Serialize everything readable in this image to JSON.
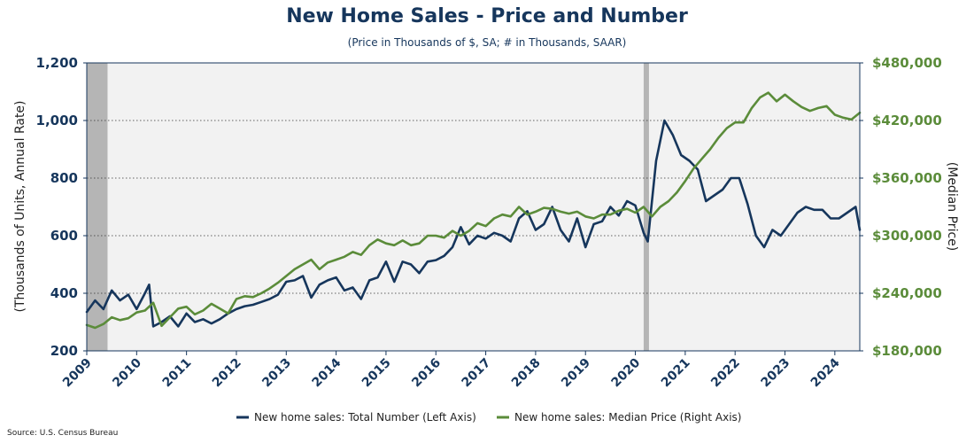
{
  "chart_data": {
    "type": "line",
    "title": "New Home Sales - Price and Number",
    "subtitle": "(Price in Thousands of $, SA; # in Thousands, SAAR)",
    "ylabel_left": "(Thousands of Units, Annual Rate)",
    "ylabel_right": "(Median Price)",
    "source": "Source: U.S. Census Bureau",
    "x_start": "2009-01",
    "x_end": "2024-07",
    "x_tick_labels": [
      "2009",
      "2010",
      "2011",
      "2012",
      "2013",
      "2014",
      "2015",
      "2016",
      "2017",
      "2018",
      "2019",
      "2020",
      "2021",
      "2022",
      "2023",
      "2024"
    ],
    "ylim_left": [
      200,
      1200
    ],
    "yticks_left": [
      "200",
      "400",
      "600",
      "800",
      "1,000",
      "1,200"
    ],
    "ylim_right": [
      180000,
      480000
    ],
    "yticks_right": [
      "$180,000",
      "$240,000",
      "$300,000",
      "$360,000",
      "$420,000",
      "$480,000"
    ],
    "recessions": [
      {
        "start": "2009-01",
        "end": "2009-06"
      },
      {
        "start": "2020-03",
        "end": "2020-04"
      }
    ],
    "grid": "horizontal dotted",
    "legend_position": "bottom",
    "series": [
      {
        "name": "New home sales: Total Number (Left Axis)",
        "axis": "left",
        "color": "#16365c",
        "x": [
          "2009-01",
          "2009-03",
          "2009-05",
          "2009-07",
          "2009-09",
          "2009-11",
          "2010-01",
          "2010-03",
          "2010-04",
          "2010-05",
          "2010-07",
          "2010-09",
          "2010-11",
          "2011-01",
          "2011-03",
          "2011-05",
          "2011-07",
          "2011-09",
          "2011-11",
          "2012-01",
          "2012-03",
          "2012-05",
          "2012-07",
          "2012-09",
          "2012-11",
          "2013-01",
          "2013-03",
          "2013-05",
          "2013-07",
          "2013-09",
          "2013-11",
          "2014-01",
          "2014-03",
          "2014-05",
          "2014-07",
          "2014-09",
          "2014-11",
          "2015-01",
          "2015-03",
          "2015-05",
          "2015-07",
          "2015-09",
          "2015-11",
          "2016-01",
          "2016-03",
          "2016-05",
          "2016-07",
          "2016-09",
          "2016-11",
          "2017-01",
          "2017-03",
          "2017-05",
          "2017-07",
          "2017-09",
          "2017-11",
          "2018-01",
          "2018-03",
          "2018-05",
          "2018-07",
          "2018-09",
          "2018-11",
          "2019-01",
          "2019-03",
          "2019-05",
          "2019-07",
          "2019-09",
          "2019-11",
          "2020-01",
          "2020-03",
          "2020-04",
          "2020-06",
          "2020-08",
          "2020-10",
          "2020-12",
          "2021-02",
          "2021-04",
          "2021-06",
          "2021-08",
          "2021-10",
          "2021-12",
          "2022-02",
          "2022-04",
          "2022-06",
          "2022-08",
          "2022-10",
          "2022-12",
          "2023-02",
          "2023-04",
          "2023-06",
          "2023-08",
          "2023-10",
          "2023-12",
          "2024-02",
          "2024-04",
          "2024-06",
          "2024-07"
        ],
        "values": [
          335,
          375,
          345,
          410,
          375,
          395,
          345,
          400,
          430,
          285,
          300,
          320,
          285,
          330,
          300,
          310,
          295,
          310,
          330,
          345,
          355,
          360,
          370,
          380,
          395,
          440,
          445,
          460,
          385,
          430,
          445,
          455,
          410,
          420,
          380,
          445,
          455,
          510,
          440,
          510,
          500,
          470,
          510,
          515,
          530,
          560,
          630,
          570,
          600,
          590,
          610,
          600,
          580,
          660,
          685,
          620,
          640,
          700,
          620,
          580,
          660,
          560,
          640,
          650,
          700,
          670,
          720,
          705,
          610,
          580,
          860,
          1000,
          950,
          880,
          860,
          830,
          720,
          740,
          760,
          800,
          800,
          710,
          600,
          560,
          620,
          600,
          640,
          680,
          700,
          690,
          690,
          660,
          660,
          680,
          700,
          620
        ]
      },
      {
        "name": "New home sales: Median Price (Right Axis)",
        "axis": "right",
        "color": "#5b8c3a",
        "x": [
          "2009-01",
          "2009-03",
          "2009-05",
          "2009-07",
          "2009-09",
          "2009-11",
          "2010-01",
          "2010-03",
          "2010-05",
          "2010-07",
          "2010-09",
          "2010-11",
          "2011-01",
          "2011-03",
          "2011-05",
          "2011-07",
          "2011-09",
          "2011-11",
          "2012-01",
          "2012-03",
          "2012-05",
          "2012-07",
          "2012-09",
          "2012-11",
          "2013-01",
          "2013-03",
          "2013-05",
          "2013-07",
          "2013-09",
          "2013-11",
          "2014-01",
          "2014-03",
          "2014-05",
          "2014-07",
          "2014-09",
          "2014-11",
          "2015-01",
          "2015-03",
          "2015-05",
          "2015-07",
          "2015-09",
          "2015-11",
          "2016-01",
          "2016-03",
          "2016-05",
          "2016-07",
          "2016-09",
          "2016-11",
          "2017-01",
          "2017-03",
          "2017-05",
          "2017-07",
          "2017-09",
          "2017-11",
          "2018-01",
          "2018-03",
          "2018-05",
          "2018-07",
          "2018-09",
          "2018-11",
          "2019-01",
          "2019-03",
          "2019-05",
          "2019-07",
          "2019-09",
          "2019-11",
          "2020-01",
          "2020-03",
          "2020-05",
          "2020-07",
          "2020-09",
          "2020-11",
          "2021-01",
          "2021-03",
          "2021-05",
          "2021-07",
          "2021-09",
          "2021-11",
          "2022-01",
          "2022-03",
          "2022-05",
          "2022-07",
          "2022-09",
          "2022-11",
          "2023-01",
          "2023-03",
          "2023-05",
          "2023-07",
          "2023-09",
          "2023-11",
          "2024-01",
          "2024-03",
          "2024-05",
          "2024-07"
        ],
        "values": [
          207000,
          204000,
          208000,
          215000,
          212000,
          214000,
          220000,
          222000,
          230000,
          206000,
          215000,
          224000,
          226000,
          218000,
          222000,
          229000,
          224000,
          219000,
          234000,
          237000,
          236000,
          240000,
          245000,
          251000,
          258000,
          265000,
          270000,
          275000,
          265000,
          272000,
          275000,
          278000,
          283000,
          280000,
          290000,
          296000,
          292000,
          290000,
          295000,
          290000,
          292000,
          300000,
          300000,
          298000,
          305000,
          300000,
          305000,
          313000,
          310000,
          318000,
          322000,
          320000,
          330000,
          322000,
          325000,
          329000,
          328000,
          325000,
          323000,
          325000,
          320000,
          318000,
          322000,
          322000,
          326000,
          328000,
          324000,
          330000,
          320000,
          330000,
          336000,
          345000,
          357000,
          370000,
          380000,
          390000,
          402000,
          412000,
          418000,
          418000,
          433000,
          444000,
          449000,
          440000,
          447000,
          440000,
          434000,
          430000,
          433000,
          435000,
          426000,
          423000,
          421000,
          428000
        ]
      }
    ]
  }
}
